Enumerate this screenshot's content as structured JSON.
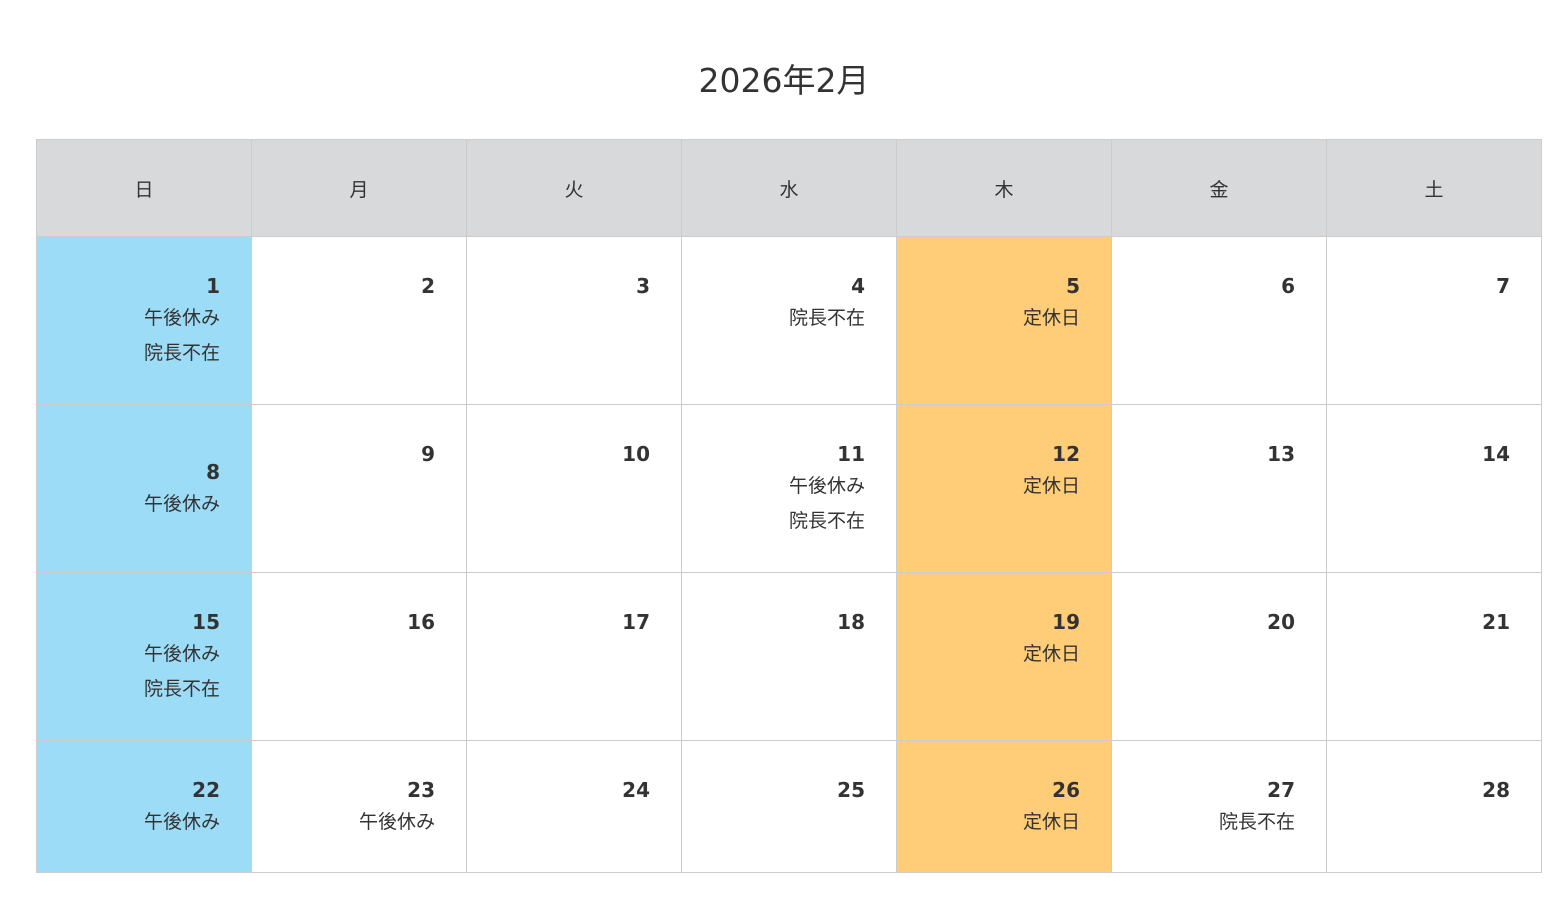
{
  "title": "2026年2月",
  "weekdays": [
    "日",
    "月",
    "火",
    "水",
    "木",
    "金",
    "土"
  ],
  "colors": {
    "header_bg": "#d8d9db",
    "sunday_bg": "#9cdcf6",
    "closed_bg": "#ffcc77",
    "border": "#cccccc",
    "text": "#333333"
  },
  "weeks": [
    [
      {
        "day": "1",
        "events": [
          "午後休み",
          "院長不在"
        ],
        "type": "sun"
      },
      {
        "day": "2",
        "events": []
      },
      {
        "day": "3",
        "events": []
      },
      {
        "day": "4",
        "events": [
          "院長不在"
        ]
      },
      {
        "day": "5",
        "events": [
          "定休日"
        ],
        "type": "closed"
      },
      {
        "day": "6",
        "events": []
      },
      {
        "day": "7",
        "events": []
      }
    ],
    [
      {
        "day": "8",
        "events": [
          "午後休み"
        ],
        "type": "sun"
      },
      {
        "day": "9",
        "events": []
      },
      {
        "day": "10",
        "events": []
      },
      {
        "day": "11",
        "events": [
          "午後休み",
          "院長不在"
        ]
      },
      {
        "day": "12",
        "events": [
          "定休日"
        ],
        "type": "closed"
      },
      {
        "day": "13",
        "events": []
      },
      {
        "day": "14",
        "events": []
      }
    ],
    [
      {
        "day": "15",
        "events": [
          "午後休み",
          "院長不在"
        ],
        "type": "sun"
      },
      {
        "day": "16",
        "events": []
      },
      {
        "day": "17",
        "events": []
      },
      {
        "day": "18",
        "events": []
      },
      {
        "day": "19",
        "events": [
          "定休日"
        ],
        "type": "closed"
      },
      {
        "day": "20",
        "events": []
      },
      {
        "day": "21",
        "events": []
      }
    ],
    [
      {
        "day": "22",
        "events": [
          "午後休み"
        ],
        "type": "sun"
      },
      {
        "day": "23",
        "events": [
          "午後休み"
        ]
      },
      {
        "day": "24",
        "events": []
      },
      {
        "day": "25",
        "events": []
      },
      {
        "day": "26",
        "events": [
          "定休日"
        ],
        "type": "closed"
      },
      {
        "day": "27",
        "events": [
          "院長不在"
        ]
      },
      {
        "day": "28",
        "events": []
      }
    ]
  ]
}
